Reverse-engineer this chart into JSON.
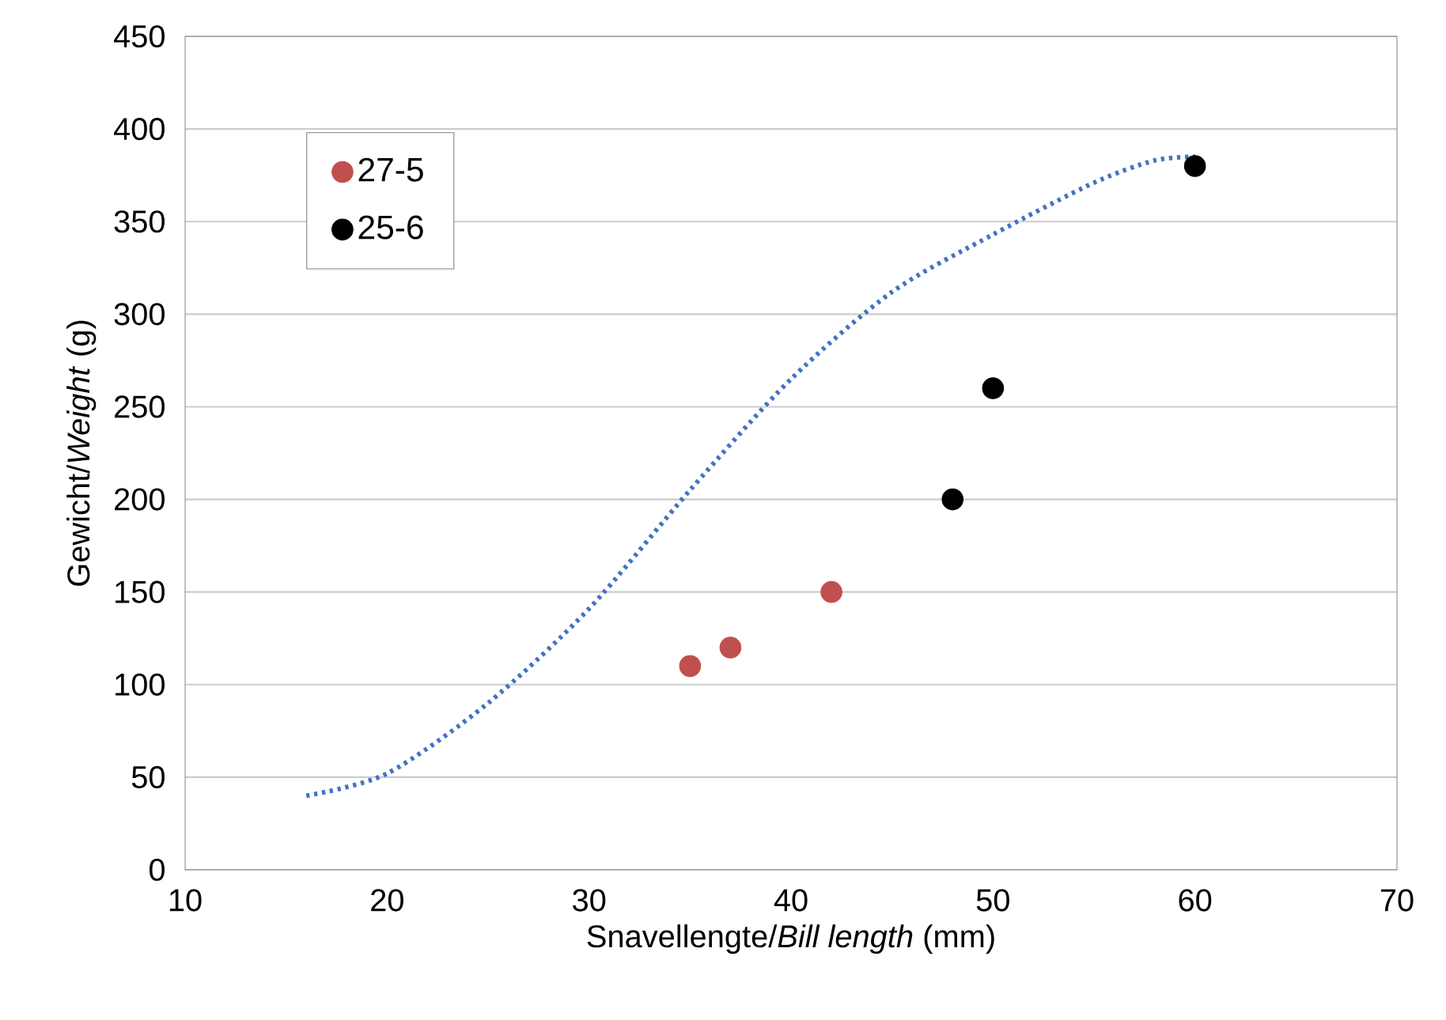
{
  "chart_data": {
    "type": "scatter",
    "xlabel": "Snavellengte/*Bill length* (mm)",
    "ylabel": "Gewicht/*Weight* (g)",
    "xlim": [
      10,
      70
    ],
    "ylim": [
      0,
      450
    ],
    "xticks": [
      10,
      20,
      30,
      40,
      50,
      60,
      70
    ],
    "yticks": [
      0,
      50,
      100,
      150,
      200,
      250,
      300,
      350,
      400,
      450
    ],
    "grid": "y",
    "legend": "top left",
    "series": [
      {
        "name": "27-5",
        "color": "#c0504d",
        "marker": "circle",
        "x": [
          35,
          37,
          42
        ],
        "values": [
          110,
          120,
          150
        ]
      },
      {
        "name": "25-6",
        "color": "#000000",
        "marker": "circle",
        "x": [
          48,
          50,
          60
        ],
        "values": [
          200,
          260,
          380
        ]
      },
      {
        "type": "line",
        "color": "#4472c4",
        "line_style": "dotted",
        "marker": "none",
        "x": [
          16,
          20,
          25,
          30,
          35,
          40,
          45,
          50,
          55,
          58,
          60
        ],
        "values": [
          40,
          52,
          90,
          141,
          205,
          265,
          312,
          343,
          371,
          383,
          385
        ]
      }
    ]
  }
}
